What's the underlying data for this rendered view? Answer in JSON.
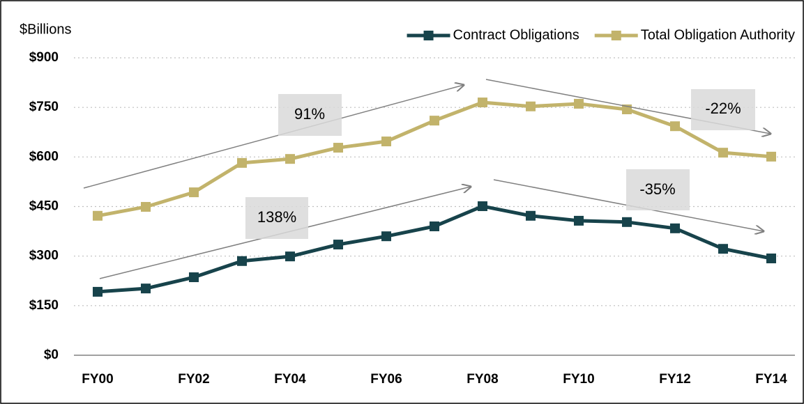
{
  "chart_data": {
    "type": "line",
    "y_label": "$Billions",
    "categories": [
      "FY00",
      null,
      "FY02",
      null,
      "FY04",
      null,
      "FY06",
      null,
      "FY08",
      null,
      "FY10",
      null,
      "FY12",
      null,
      "FY14"
    ],
    "series": [
      {
        "name": "Contract Obligations",
        "color": "#17434b",
        "values": [
          192,
          202,
          236,
          285,
          299,
          335,
          360,
          390,
          451,
          422,
          407,
          403,
          384,
          322,
          293
        ]
      },
      {
        "name": "Total Obligation Authority",
        "color": "#c2b36b",
        "values": [
          422,
          449,
          493,
          582,
          594,
          628,
          647,
          710,
          765,
          753,
          761,
          744,
          693,
          613,
          601
        ]
      }
    ],
    "ylim": [
      0,
      900
    ],
    "yticks": [
      {
        "value": 0,
        "label": "$0"
      },
      {
        "value": 150,
        "label": "$150"
      },
      {
        "value": 300,
        "label": "$300"
      },
      {
        "value": 450,
        "label": "$450"
      },
      {
        "value": 600,
        "label": "$600"
      },
      {
        "value": 750,
        "label": "$750"
      },
      {
        "value": 900,
        "label": "$900"
      }
    ],
    "grid": true,
    "legend": "top-right",
    "annotations": [
      "91%",
      "138%",
      "-22%",
      "-35%"
    ]
  }
}
